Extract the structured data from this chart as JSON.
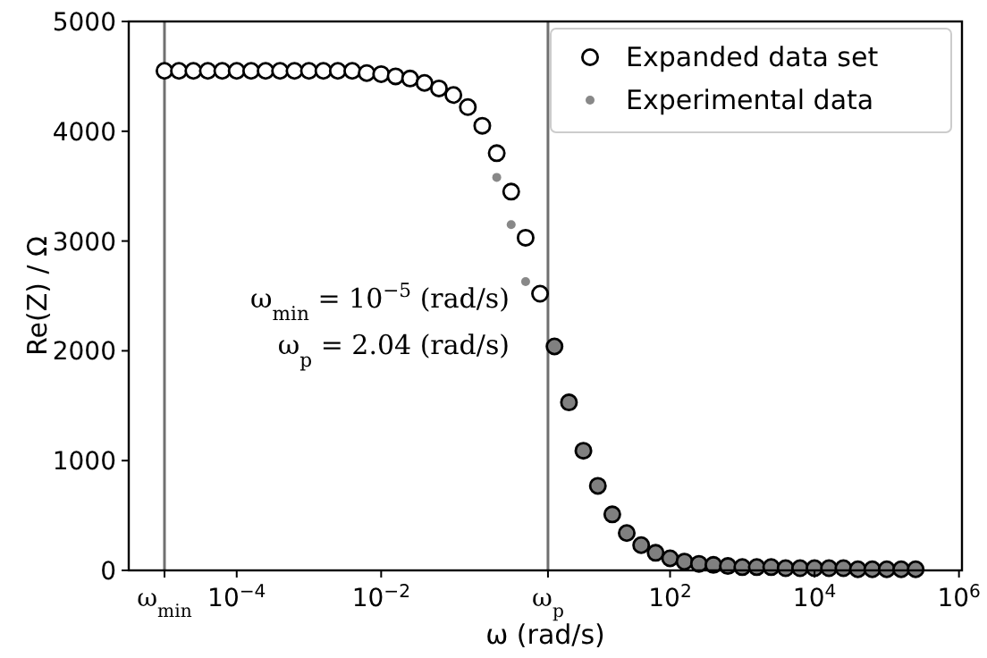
{
  "chart_data": {
    "type": "scatter",
    "xlabel": "ω (rad/s)",
    "ylabel": "Re(Z) / Ω",
    "log": "x",
    "xlim": [
      3.2e-06,
      1100000.0
    ],
    "ylim": [
      0,
      5000
    ],
    "xticks": [
      {
        "value": 1e-05,
        "label": "ω$_{min}$"
      },
      {
        "value": 0.0001,
        "label": "10$^{−4}$"
      },
      {
        "value": 0.01,
        "label": "10$^{−2}$"
      },
      {
        "value": 2.04,
        "label": "ω$_{p}$"
      },
      {
        "value": 100,
        "label": "10$^{2}$"
      },
      {
        "value": 10000,
        "label": "10$^{4}$"
      },
      {
        "value": 1000000,
        "label": "10$^{6}$"
      }
    ],
    "yticks": [
      0,
      1000,
      2000,
      3000,
      4000,
      5000
    ],
    "ref_lines": [
      {
        "axis": "x",
        "value": 1e-05,
        "color": "#707070"
      },
      {
        "axis": "x",
        "value": 2.04,
        "color": "#707070"
      }
    ],
    "annotations": [
      "ω$_{min}$ = 10$^{−5}$ (rad/s)",
      "ω$_{p}$ = 2.04 (rad/s)"
    ],
    "legend": "top right",
    "grid": false,
    "marker": "circle",
    "series": [
      {
        "name": "Expanded data set",
        "color": "#000000",
        "x": [
          1e-05,
          1.585e-05,
          2.512e-05,
          3.981e-05,
          6.31e-05,
          0.0001,
          0.0001585,
          0.0002512,
          0.0003981,
          0.000631,
          0.001,
          0.001585,
          0.002512,
          0.003981,
          0.00631,
          0.01,
          0.01585,
          0.02512,
          0.03981,
          0.0631,
          0.1,
          0.1585,
          0.2512,
          0.3981,
          0.631,
          1,
          1.585,
          2.512,
          3.981,
          6.31,
          10,
          15.85,
          25.12,
          39.81,
          63.1,
          100,
          158.5,
          251.2,
          398.1,
          631,
          1000,
          1585,
          2512,
          3981,
          6310,
          10000,
          15850,
          25120,
          39810,
          63100,
          100000,
          158500,
          251200
        ],
        "values": [
          4550,
          4550,
          4550,
          4550,
          4550,
          4550,
          4550,
          4550,
          4550,
          4550,
          4550,
          4550,
          4550,
          4550,
          4530,
          4520,
          4500,
          4480,
          4440,
          4390,
          4330,
          4220,
          4050,
          3800,
          3450,
          3030,
          2520,
          2040,
          1530,
          1090,
          770,
          510,
          340,
          230,
          160,
          110,
          80,
          60,
          50,
          40,
          30,
          30,
          30,
          20,
          20,
          20,
          20,
          20,
          10,
          10,
          10,
          10,
          10
        ],
        "colors": [
          "#ffffff",
          "#ffffff",
          "#ffffff",
          "#ffffff",
          "#ffffff",
          "#ffffff",
          "#ffffff",
          "#ffffff",
          "#ffffff",
          "#ffffff",
          "#ffffff",
          "#ffffff",
          "#ffffff",
          "#ffffff",
          "#ffffff",
          "#ffffff",
          "#ffffff",
          "#ffffff",
          "#ffffff",
          "#ffffff",
          "#ffffff",
          "#ffffff",
          "#ffffff",
          "#ffffff",
          "#ffffff",
          "#ffffff",
          "#ffffff",
          "#808080",
          "#808080",
          "#808080",
          "#808080",
          "#808080",
          "#808080",
          "#808080",
          "#808080",
          "#808080",
          "#808080",
          "#808080",
          "#808080",
          "#808080",
          "#808080",
          "#808080",
          "#808080",
          "#808080",
          "#808080",
          "#808080",
          "#808080",
          "#808080",
          "#808080",
          "#808080",
          "#808080",
          "#808080",
          "#808080"
        ]
      },
      {
        "name": "Experimental data",
        "color": "#888888",
        "x": [
          0.3981,
          0.631,
          1
        ],
        "values": [
          3580,
          3150,
          2630
        ]
      }
    ]
  }
}
